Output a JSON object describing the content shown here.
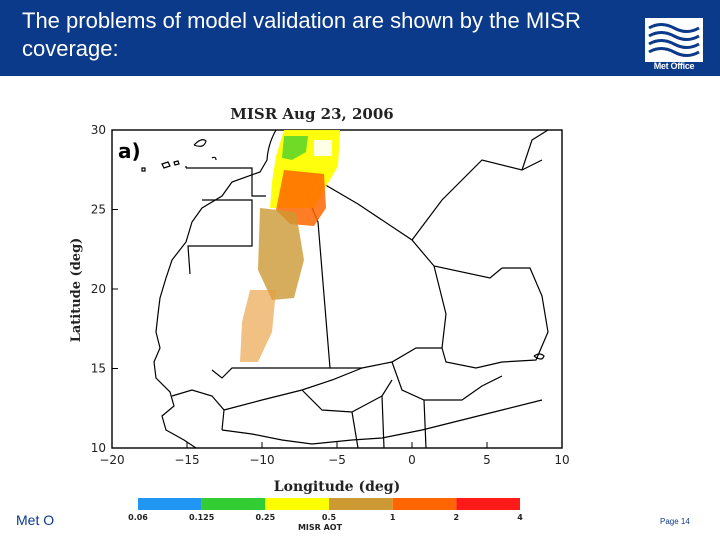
{
  "slide": {
    "title": "The problems of model validation are shown by the MISR coverage:",
    "logo_text": "Met Office",
    "footer_org": "Met O",
    "page_label": "Page 14",
    "colors": {
      "header_bg": "#0b3a8a",
      "text_on_header": "#ffffff"
    }
  },
  "chart_data": {
    "type": "scatter",
    "title": "MISR Aug 23, 2006",
    "panel_label": "a)",
    "xlabel": "Longitude (deg)",
    "ylabel": "Latitude (deg)",
    "xlim": [
      -20,
      10
    ],
    "ylim": [
      10,
      30
    ],
    "x_ticks": [
      -20,
      -15,
      -10,
      -5,
      0,
      5,
      10
    ],
    "y_ticks": [
      10,
      15,
      20,
      25,
      30
    ],
    "colorbar": {
      "label": "MISR AOT",
      "tick_labels": [
        "0.06",
        "0.125",
        "0.25",
        "0.5",
        "1",
        "2",
        "4"
      ],
      "colors": [
        "#2196f3",
        "#33cc33",
        "#ffff00",
        "#cc9933",
        "#ff6600",
        "#ff1a1a"
      ]
    },
    "swath_segments": [
      {
        "aot_class": "yellow",
        "color": "#ffff00",
        "lat_min": 25.6,
        "lat_max": 30.2,
        "lon_center": -8.0
      },
      {
        "aot_class": "green",
        "color": "#33cc33",
        "lat_min": 28.2,
        "lat_max": 29.8,
        "lon_center": -8.4
      },
      {
        "aot_class": "orange",
        "color": "#ff6600",
        "lat_min": 23.5,
        "lat_max": 27.5,
        "lon_center": -7.4
      },
      {
        "aot_class": "tan",
        "color": "#cc9933",
        "lat_min": 18.5,
        "lat_max": 25.5,
        "lon_center": -9.3
      },
      {
        "aot_class": "mixed",
        "color": "#e8a040",
        "lat_min": 16.0,
        "lat_max": 20.0,
        "lon_center": -10.4
      }
    ]
  }
}
